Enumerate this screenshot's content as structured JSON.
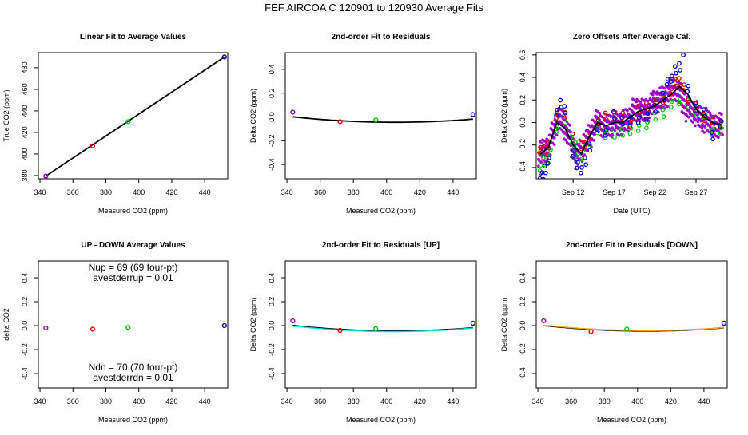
{
  "figure": {
    "title": "FEF   AIRCOA C   120901 to 120930   Average Fits"
  },
  "colors": {
    "purple": "#9900cc",
    "red": "#dd0000",
    "green": "#00cc00",
    "blue": "#0000cc",
    "cyan": "#00dddd",
    "orange": "#ffaa00",
    "black": "#000000"
  },
  "chart_data": [
    {
      "type": "scatter",
      "title": "Linear Fit to Average Values",
      "xlabel": "Measured CO2 (ppm)",
      "ylabel": "True CO2 (ppm)",
      "xlim": [
        339,
        454
      ],
      "ylim": [
        377,
        494
      ],
      "xticks": [
        340,
        360,
        380,
        400,
        420,
        440
      ],
      "yticks": [
        380,
        400,
        420,
        440,
        460,
        480
      ],
      "points": [
        {
          "x": 343.5,
          "y": 379.5,
          "color": "purple"
        },
        {
          "x": 372.0,
          "y": 407.5,
          "color": "red"
        },
        {
          "x": 393.5,
          "y": 430.0,
          "color": "green"
        },
        {
          "x": 452.0,
          "y": 490.0,
          "color": "blue"
        }
      ],
      "fit_line": {
        "type": "linear",
        "x": [
          343.5,
          452.0
        ],
        "y": [
          379.5,
          490.0
        ],
        "color": "black"
      }
    },
    {
      "type": "scatter",
      "title": "2nd-order Fit to Residuals",
      "xlabel": "Measured CO2 (ppm)",
      "ylabel": "Delta CO2 (ppm)",
      "xlim": [
        339,
        454
      ],
      "ylim": [
        -0.52,
        0.54
      ],
      "xticks": [
        340,
        360,
        380,
        400,
        420,
        440
      ],
      "yticks": [
        -0.4,
        -0.2,
        0.0,
        0.2,
        0.4
      ],
      "points": [
        {
          "x": 343.5,
          "y": 0.04,
          "color": "purple"
        },
        {
          "x": 372.0,
          "y": -0.04,
          "color": "red"
        },
        {
          "x": 393.5,
          "y": -0.025,
          "color": "green"
        },
        {
          "x": 452.0,
          "y": 0.02,
          "color": "blue"
        }
      ],
      "fit_curves": [
        {
          "type": "quadratic",
          "x_from": 343.5,
          "x_to": 452.0,
          "coef": [
            1.22e-05,
            405.0,
            -0.045
          ],
          "color": "black",
          "width": 1.8
        }
      ]
    },
    {
      "type": "scatter",
      "title": "Zero Offsets After Average Cal.",
      "xlabel": "Date (UTC)",
      "ylabel": "Delta CO2 (ppm)",
      "xlim": [
        7.5,
        30.8
      ],
      "ylim": [
        -0.5,
        0.62
      ],
      "xticks": [
        12,
        17,
        22,
        27
      ],
      "xtick_labels": [
        "Sep 12",
        "Sep 17",
        "Sep 22",
        "Sep 27"
      ],
      "yticks": [
        -0.4,
        -0.2,
        0.0,
        0.2,
        0.4,
        0.6
      ],
      "series": [
        {
          "name": "purple",
          "color": "purple",
          "x": [
            8.0,
            8.5,
            9.0,
            9.5,
            10.0,
            10.5,
            11.0,
            11.5,
            12.0,
            12.5,
            13.0,
            13.5,
            14.0,
            14.5,
            15.0,
            15.5,
            16.0,
            16.5,
            17.0,
            17.5,
            18.0,
            18.5,
            19.0,
            19.5,
            20.0,
            20.5,
            21.0,
            21.5,
            22.0,
            22.5,
            23.0,
            23.5,
            24.0,
            24.5,
            25.0,
            25.5,
            26.0,
            26.5,
            27.0,
            27.5,
            28.0,
            28.5,
            29.0,
            29.5,
            30.0
          ],
          "y": [
            -0.28,
            -0.25,
            -0.22,
            -0.1,
            0.0,
            0.02,
            -0.05,
            -0.12,
            -0.22,
            -0.3,
            -0.25,
            -0.18,
            -0.12,
            -0.05,
            0.0,
            -0.02,
            -0.03,
            -0.02,
            0.0,
            -0.02,
            0.0,
            0.02,
            0.05,
            0.1,
            0.12,
            0.1,
            0.12,
            0.15,
            0.18,
            0.2,
            0.22,
            0.25,
            0.28,
            0.3,
            0.25,
            0.18,
            0.12,
            0.1,
            0.08,
            0.05,
            0.02,
            0.0,
            -0.02,
            -0.05,
            0.0
          ]
        },
        {
          "name": "green",
          "color": "green",
          "x": [
            8.0,
            8.4,
            8.8,
            9.2,
            10.0,
            11.0,
            11.8,
            12.2,
            12.6,
            13.0,
            13.5,
            14.0,
            15.0,
            16.0,
            17.0,
            18.0,
            19.0,
            20.0,
            21.0,
            22.0,
            23.0,
            24.0,
            25.0,
            26.0,
            27.0,
            28.0,
            29.0,
            30.0
          ],
          "y": [
            -0.38,
            -0.35,
            -0.32,
            -0.28,
            -0.05,
            -0.02,
            -0.15,
            -0.22,
            -0.3,
            -0.28,
            -0.22,
            -0.15,
            -0.08,
            -0.1,
            -0.12,
            -0.08,
            -0.1,
            -0.05,
            0.0,
            0.05,
            0.1,
            0.15,
            0.2,
            0.15,
            0.1,
            0.02,
            -0.08,
            -0.05
          ]
        },
        {
          "name": "red",
          "color": "red",
          "x": [
            8.0,
            8.5,
            9.0,
            10.0,
            11.0,
            12.0,
            13.0,
            13.5,
            14.0,
            15.0,
            16.0,
            17.0,
            18.0,
            19.0,
            20.0,
            21.0,
            22.0,
            23.0,
            24.0,
            24.5,
            25.0,
            25.5,
            26.0,
            27.0,
            28.0,
            29.0,
            30.0
          ],
          "y": [
            -0.22,
            -0.25,
            -0.18,
            0.05,
            0.08,
            -0.15,
            -0.2,
            -0.22,
            -0.12,
            0.02,
            0.05,
            0.08,
            0.05,
            0.0,
            0.1,
            0.15,
            0.15,
            0.2,
            0.3,
            0.35,
            0.38,
            0.3,
            0.2,
            0.12,
            0.05,
            0.0,
            -0.02
          ]
        },
        {
          "name": "blue",
          "color": "blue",
          "x": [
            8.0,
            8.3,
            8.6,
            9.0,
            10.0,
            10.5,
            11.0,
            12.0,
            12.5,
            13.0,
            13.5,
            14.0,
            15.0,
            16.0,
            17.0,
            18.0,
            19.0,
            20.0,
            21.0,
            22.0,
            23.0,
            23.5,
            24.0,
            24.5,
            25.0,
            25.5,
            26.0,
            27.0,
            28.0,
            29.0,
            30.0
          ],
          "y": [
            -0.45,
            -0.48,
            -0.4,
            -0.35,
            0.1,
            0.15,
            0.12,
            -0.3,
            -0.38,
            -0.4,
            -0.35,
            -0.2,
            -0.05,
            -0.08,
            0.05,
            0.02,
            0.0,
            0.02,
            0.08,
            0.12,
            0.25,
            0.35,
            0.4,
            0.45,
            0.5,
            0.6,
            0.3,
            0.15,
            0.08,
            -0.1,
            -0.02
          ]
        }
      ],
      "mean_line": {
        "color": "black",
        "x": [
          8.0,
          9.0,
          10.0,
          11.0,
          12.0,
          13.0,
          14.0,
          15.0,
          16.0,
          17.0,
          18.0,
          19.0,
          20.0,
          21.0,
          22.0,
          23.0,
          24.0,
          25.0,
          26.0,
          27.0,
          28.0,
          29.0,
          30.0
        ],
        "y": [
          -0.28,
          -0.22,
          0.0,
          -0.05,
          -0.2,
          -0.28,
          -0.12,
          0.0,
          -0.03,
          0.0,
          0.0,
          0.05,
          0.1,
          0.12,
          0.15,
          0.2,
          0.25,
          0.32,
          0.25,
          0.12,
          0.05,
          0.0,
          -0.02
        ]
      }
    },
    {
      "type": "scatter",
      "title": "UP - DOWN Average Values",
      "xlabel": "Measured CO2 (ppm)",
      "ylabel": "delta CO2",
      "xlim": [
        339,
        454
      ],
      "ylim": [
        -0.52,
        0.54
      ],
      "xticks": [
        340,
        360,
        380,
        400,
        420,
        440
      ],
      "yticks": [
        -0.4,
        -0.2,
        0.0,
        0.2,
        0.4
      ],
      "points": [
        {
          "x": 343.5,
          "y": -0.02,
          "color": "purple"
        },
        {
          "x": 372.0,
          "y": -0.03,
          "color": "red"
        },
        {
          "x": 393.5,
          "y": -0.015,
          "color": "green"
        },
        {
          "x": 452.0,
          "y": 0.0,
          "color": "blue"
        }
      ],
      "annotations": {
        "nup": "Nup = 69 (69 four-pt)",
        "avestderrup": "avestderrup =  0.01",
        "ndn": "Ndn = 70 (70 four-pt)",
        "avestderrdn": "avestderrdn =  0.01"
      }
    },
    {
      "type": "scatter",
      "title": "2nd-order Fit to Residuals [UP]",
      "xlabel": "Measured CO2 (ppm)",
      "ylabel": "Delta CO2 (ppm)",
      "xlim": [
        339,
        454
      ],
      "ylim": [
        -0.52,
        0.54
      ],
      "xticks": [
        340,
        360,
        380,
        400,
        420,
        440
      ],
      "yticks": [
        -0.4,
        -0.2,
        0.0,
        0.2,
        0.4
      ],
      "points": [
        {
          "x": 343.5,
          "y": 0.04,
          "color": "purple"
        },
        {
          "x": 372.0,
          "y": -0.04,
          "color": "red"
        },
        {
          "x": 393.5,
          "y": -0.025,
          "color": "green"
        },
        {
          "x": 452.0,
          "y": 0.02,
          "color": "blue"
        }
      ],
      "fit_curves": [
        {
          "type": "quadratic",
          "x_from": 343.5,
          "x_to": 452.0,
          "coef": [
            1.22e-05,
            405.0,
            -0.045
          ],
          "color": "black",
          "width": 1.8
        },
        {
          "type": "quadratic",
          "x_from": 343.5,
          "x_to": 452.0,
          "coef": [
            1.28e-05,
            404.0,
            -0.05
          ],
          "color": "cyan",
          "width": 1.4
        }
      ]
    },
    {
      "type": "scatter",
      "title": "2nd-order Fit to Residuals [DOWN]",
      "xlabel": "Measured CO2 (ppm)",
      "ylabel": "Delta CO2 (ppm)",
      "xlim": [
        339,
        454
      ],
      "ylim": [
        -0.52,
        0.54
      ],
      "xticks": [
        340,
        360,
        380,
        400,
        420,
        440
      ],
      "yticks": [
        -0.4,
        -0.2,
        0.0,
        0.2,
        0.4
      ],
      "points": [
        {
          "x": 343.5,
          "y": 0.04,
          "color": "purple"
        },
        {
          "x": 372.0,
          "y": -0.05,
          "color": "red"
        },
        {
          "x": 393.5,
          "y": -0.03,
          "color": "green"
        },
        {
          "x": 452.0,
          "y": 0.02,
          "color": "blue"
        }
      ],
      "fit_curves": [
        {
          "type": "quadratic",
          "x_from": 343.5,
          "x_to": 452.0,
          "coef": [
            1.22e-05,
            405.0,
            -0.045
          ],
          "color": "black",
          "width": 1.8
        },
        {
          "type": "quadratic",
          "x_from": 343.5,
          "x_to": 452.0,
          "coef": [
            1.18e-05,
            406.0,
            -0.042
          ],
          "color": "orange",
          "width": 1.4
        }
      ]
    }
  ]
}
